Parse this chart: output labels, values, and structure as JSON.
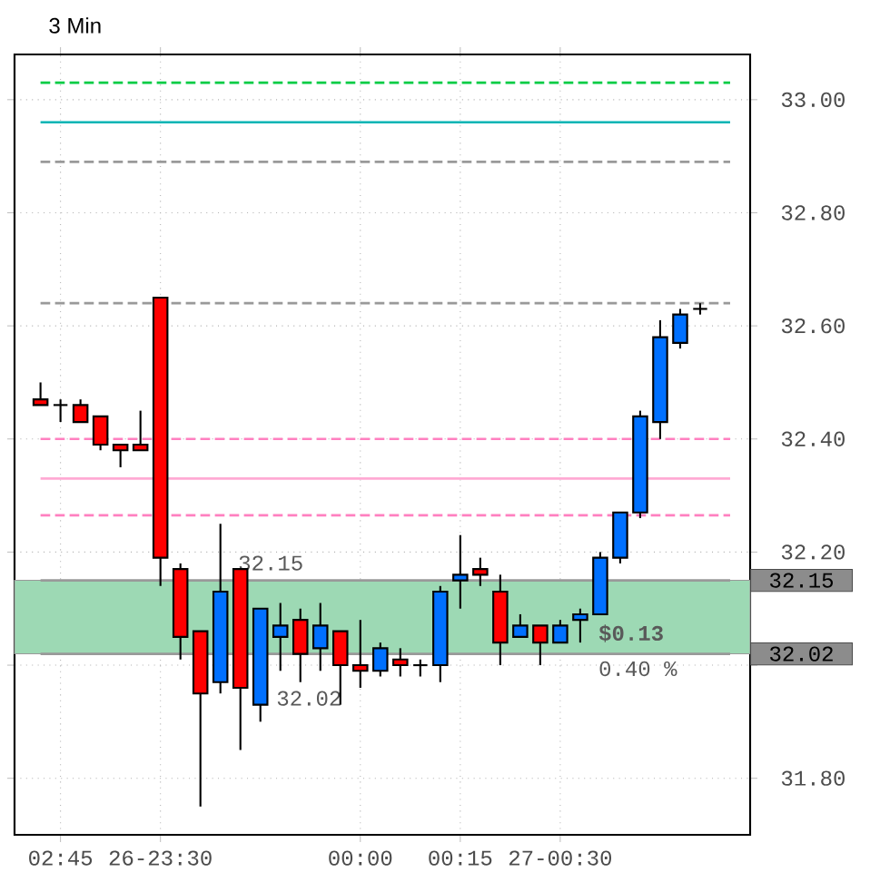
{
  "chart_data": {
    "type": "candlestick",
    "title": "3 Min",
    "categories": [
      null,
      "02:45",
      null,
      null,
      null,
      null,
      "26-23:30",
      null,
      null,
      null,
      null,
      null,
      null,
      null,
      null,
      null,
      "00:00",
      null,
      null,
      null,
      null,
      "00:15",
      null,
      null,
      null,
      null,
      "27-00:30",
      null,
      null,
      null,
      null,
      null,
      null,
      null
    ],
    "ohlc": [
      [
        32.47,
        32.5,
        32.46,
        32.46
      ],
      [
        32.46,
        32.47,
        32.43,
        32.46
      ],
      [
        32.46,
        32.47,
        32.43,
        32.43
      ],
      [
        32.44,
        32.44,
        32.38,
        32.39
      ],
      [
        32.39,
        32.39,
        32.35,
        32.38
      ],
      [
        32.39,
        32.45,
        32.38,
        32.38
      ],
      [
        32.65,
        32.65,
        32.14,
        32.19
      ],
      [
        32.17,
        32.18,
        32.01,
        32.05
      ],
      [
        32.06,
        32.06,
        31.75,
        31.95
      ],
      [
        31.97,
        32.25,
        31.95,
        32.13
      ],
      [
        32.17,
        32.17,
        31.85,
        31.96
      ],
      [
        31.93,
        32.1,
        31.9,
        32.1
      ],
      [
        32.05,
        32.11,
        31.99,
        32.07
      ],
      [
        32.08,
        32.1,
        31.97,
        32.02
      ],
      [
        32.03,
        32.11,
        31.99,
        32.07
      ],
      [
        32.06,
        32.06,
        31.93,
        32.0
      ],
      [
        32.0,
        32.08,
        31.96,
        31.99
      ],
      [
        31.99,
        32.04,
        31.98,
        32.03
      ],
      [
        32.01,
        32.03,
        31.98,
        32.0
      ],
      [
        32.0,
        32.01,
        31.98,
        32.0
      ],
      [
        32.0,
        32.14,
        31.97,
        32.13
      ],
      [
        32.15,
        32.23,
        32.1,
        32.16
      ],
      [
        32.17,
        32.19,
        32.14,
        32.16
      ],
      [
        32.13,
        32.16,
        32.0,
        32.04
      ],
      [
        32.05,
        32.09,
        32.05,
        32.07
      ],
      [
        32.07,
        32.07,
        32.0,
        32.04
      ],
      [
        32.04,
        32.08,
        32.04,
        32.07
      ],
      [
        32.08,
        32.1,
        32.04,
        32.09
      ],
      [
        32.09,
        32.2,
        32.09,
        32.19
      ],
      [
        32.19,
        32.27,
        32.18,
        32.27
      ],
      [
        32.27,
        32.45,
        32.26,
        32.44
      ],
      [
        32.43,
        32.61,
        32.4,
        32.58
      ],
      [
        32.57,
        32.63,
        32.56,
        32.62
      ],
      [
        32.63,
        32.64,
        32.62,
        32.63
      ]
    ],
    "colors": [
      "#ff0000",
      "#000000",
      "#ff0000",
      "#ff0000",
      "#ff0000",
      "#ff0000",
      "#ff0000",
      "#ff0000",
      "#ff0000",
      "#0070ff",
      "#ff0000",
      "#0070ff",
      "#0070ff",
      "#ff0000",
      "#0070ff",
      "#ff0000",
      "#ff0000",
      "#0070ff",
      "#ff0000",
      "#000000",
      "#0070ff",
      "#0070ff",
      "#ff0000",
      "#ff0000",
      "#0070ff",
      "#ff0000",
      "#0070ff",
      "#0070ff",
      "#0070ff",
      "#0070ff",
      "#0070ff",
      "#0070ff",
      "#0070ff",
      "#000000"
    ],
    "ylim": [
      31.7,
      33.08
    ],
    "yticks": [
      {
        "value": 31.8,
        "label": "31.80"
      },
      {
        "value": 32.0,
        "label": null
      },
      {
        "value": 32.2,
        "label": "32.20"
      },
      {
        "value": 32.4,
        "label": "32.40"
      },
      {
        "value": 32.6,
        "label": "32.60"
      },
      {
        "value": 32.8,
        "label": "32.80"
      },
      {
        "value": 33.0,
        "label": "33.00"
      }
    ],
    "grid": true,
    "ref_lines": [
      {
        "axis": "y",
        "value": 33.03,
        "color": "#00cc44",
        "line_style": "dashed"
      },
      {
        "axis": "y",
        "value": 32.96,
        "color": "#00b4b4",
        "line_style": "solid"
      },
      {
        "axis": "y",
        "value": 32.89,
        "color": "#999999",
        "line_style": "dashed"
      },
      {
        "axis": "y",
        "value": 32.64,
        "color": "#999999",
        "line_style": "dashed"
      },
      {
        "axis": "y",
        "value": 32.4,
        "color": "#ff80c0",
        "line_style": "dashed"
      },
      {
        "axis": "y",
        "value": 32.33,
        "color": "#ffaad4",
        "line_style": "solid"
      },
      {
        "axis": "y",
        "value": 32.265,
        "color": "#ff80c0",
        "line_style": "dashed"
      },
      {
        "axis": "y",
        "value": 32.15,
        "color": "#999999",
        "line_style": "solid",
        "label": "32.15"
      },
      {
        "axis": "y",
        "value": 32.02,
        "color": "#999999",
        "line_style": "solid",
        "label": "32.02"
      }
    ],
    "bands": [
      {
        "axis": "y",
        "from": 32.02,
        "to": 32.15,
        "color": "#9dd9b4"
      }
    ],
    "annotations": [
      "32.15",
      "32.02",
      "$0.13",
      "0.40 %"
    ]
  }
}
